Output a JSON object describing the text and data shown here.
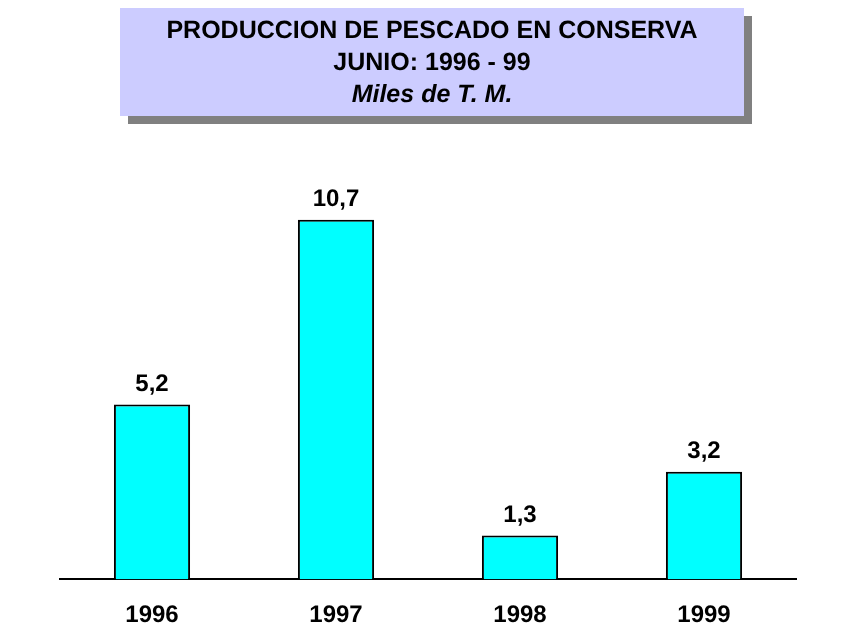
{
  "chart_data": {
    "type": "bar",
    "title": "PRODUCCION DE PESCADO EN CONSERVA\nJUNIO: 1996 - 99",
    "subtitle": "Miles de T. M.",
    "categories": [
      "1996",
      "1997",
      "1998",
      "1999"
    ],
    "values": [
      5.2,
      10.7,
      1.3,
      3.2
    ],
    "value_labels": [
      "5,2",
      "10,7",
      "1,3",
      "3,2"
    ],
    "color": "#00ffff",
    "grid": false,
    "legend": false
  }
}
